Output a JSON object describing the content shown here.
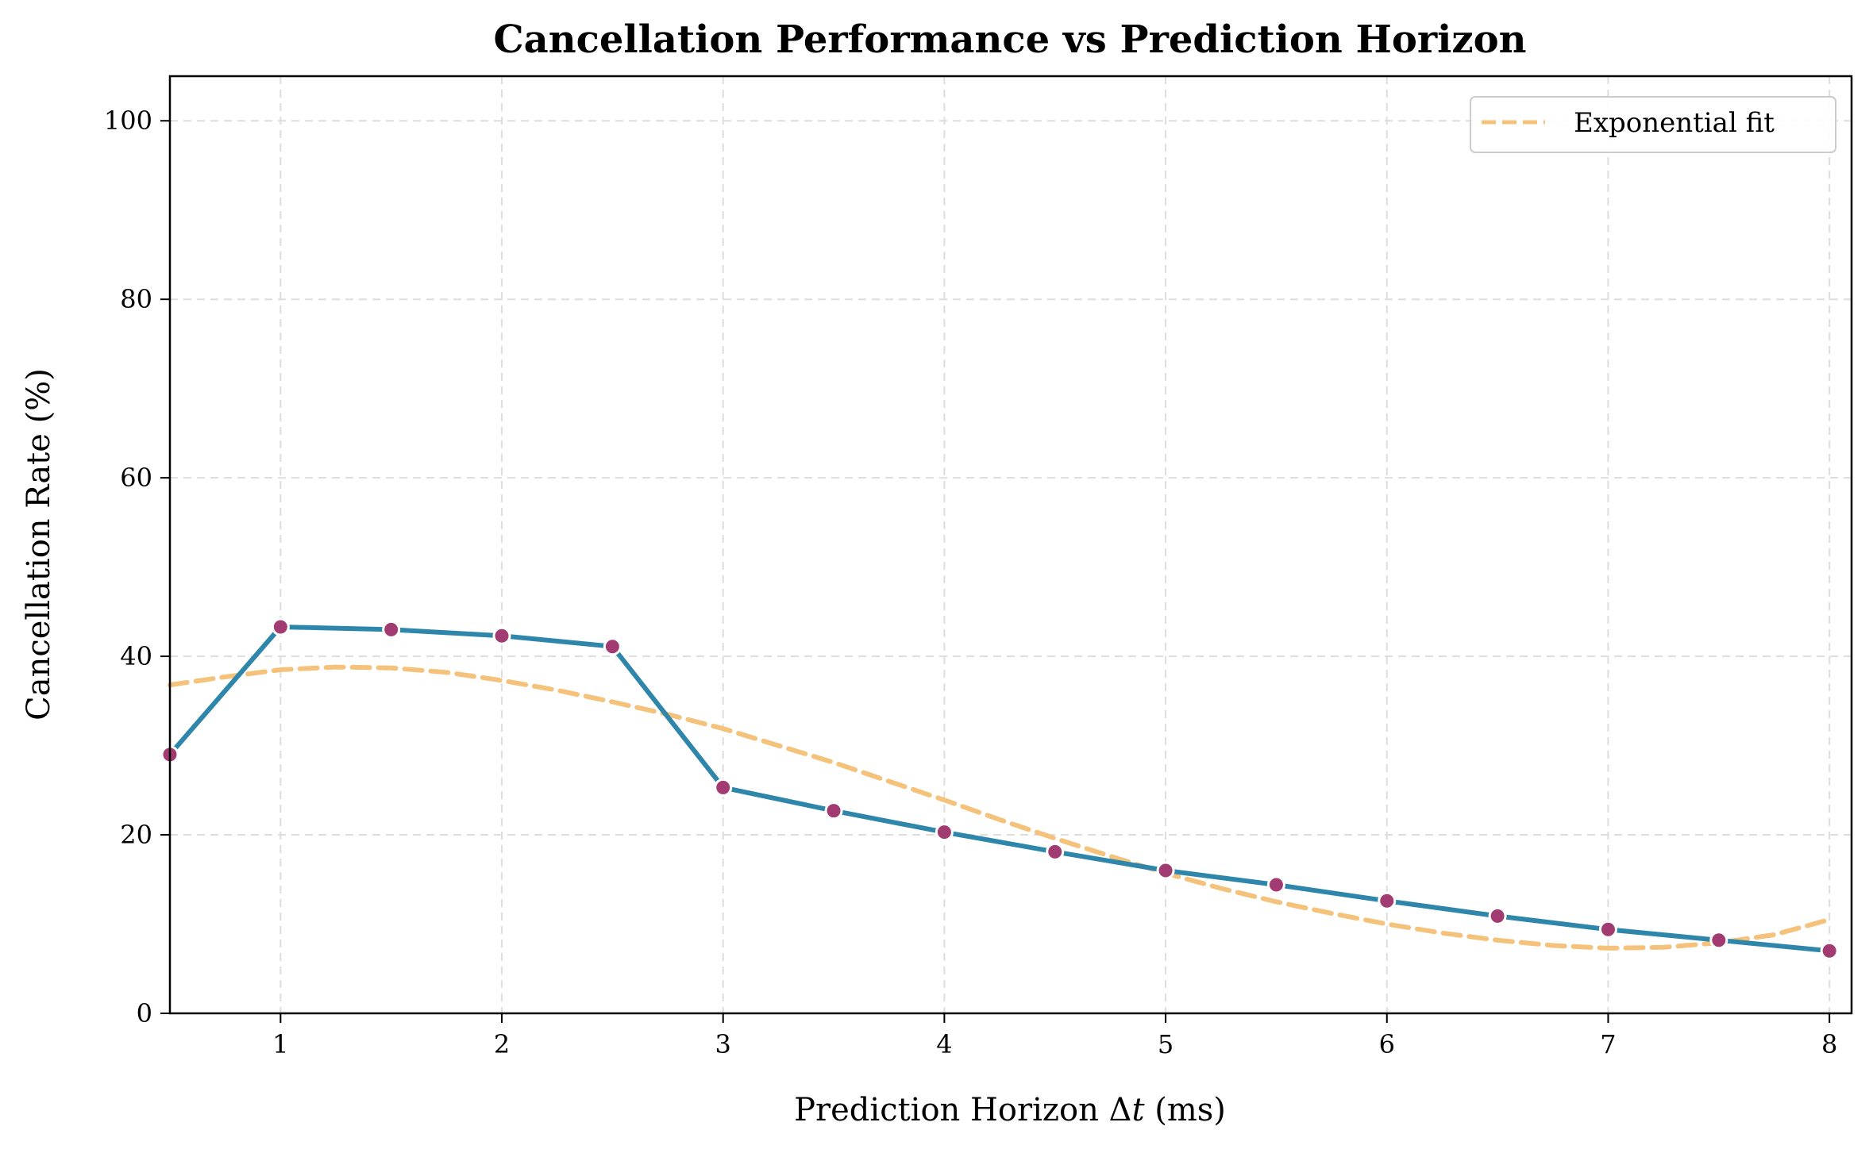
{
  "chart_data": {
    "type": "line",
    "title": "Cancellation Performance vs Prediction Horizon",
    "xlabel_prefix": "Prediction Horizon Δ",
    "xlabel_var": "t",
    "xlabel_suffix": " (ms)",
    "ylabel": "Cancellation Rate (%)",
    "xlim": [
      0.5,
      8.1
    ],
    "ylim": [
      0,
      105
    ],
    "xticks": [
      1,
      2,
      3,
      4,
      5,
      6,
      7,
      8
    ],
    "yticks": [
      0,
      20,
      40,
      60,
      80,
      100
    ],
    "grid": true,
    "legend_position": "top-right",
    "colors": {
      "measured_line": "#2e86ab",
      "measured_marker": "#a23b72",
      "fit_line": "#f4c27a",
      "grid": "#dddddd",
      "axes": "#000000"
    },
    "series": [
      {
        "x": [
          0.5,
          1.0,
          1.5,
          2.0,
          2.5,
          3.0,
          3.5,
          4.0,
          4.5,
          5.0,
          5.5,
          6.0,
          6.5,
          7.0,
          7.5,
          8.0
        ],
        "y": [
          29.0,
          43.3,
          43.0,
          42.3,
          41.1,
          25.3,
          22.7,
          20.3,
          18.1,
          16.0,
          14.4,
          12.6,
          10.9,
          9.4,
          8.2,
          7.0
        ],
        "style": "solid",
        "markers": true
      },
      {
        "name": "Exponential fit",
        "x": [
          0.5,
          0.75,
          1.0,
          1.25,
          1.5,
          1.75,
          2.0,
          2.25,
          2.5,
          2.75,
          3.0,
          3.25,
          3.5,
          3.75,
          4.0,
          4.25,
          4.5,
          4.75,
          5.0,
          5.25,
          5.5,
          5.75,
          6.0,
          6.25,
          6.5,
          6.75,
          7.0,
          7.25,
          7.5,
          7.75,
          8.0
        ],
        "y": [
          36.8,
          37.7,
          38.5,
          38.8,
          38.7,
          38.2,
          37.3,
          36.2,
          34.9,
          33.5,
          31.9,
          30.0,
          28.1,
          26.0,
          23.9,
          21.7,
          19.6,
          17.6,
          15.7,
          14.0,
          12.5,
          11.2,
          10.0,
          9.0,
          8.2,
          7.6,
          7.3,
          7.4,
          7.9,
          8.8,
          10.5
        ],
        "style": "dashed",
        "markers": false
      }
    ]
  }
}
